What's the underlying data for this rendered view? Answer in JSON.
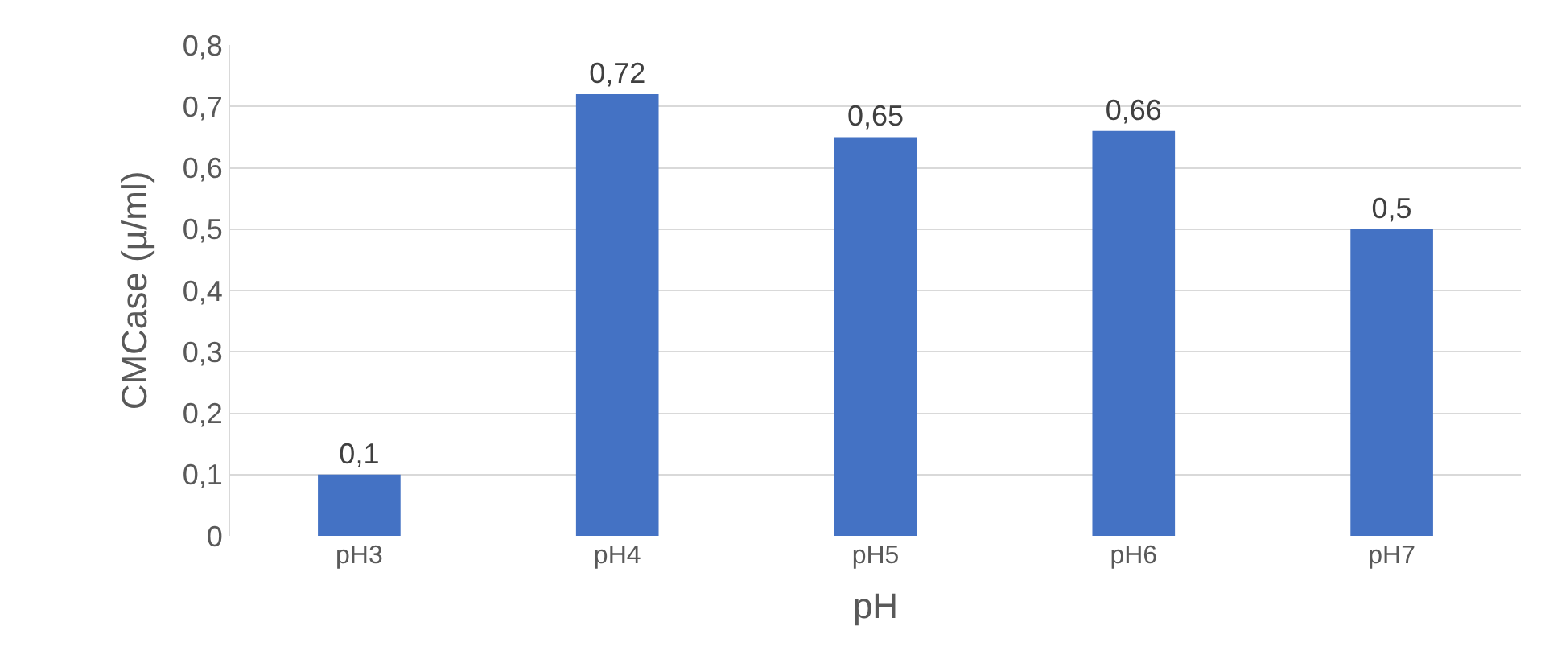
{
  "chart_data": {
    "type": "bar",
    "xlabel": "pH",
    "ylabel": "CMCase (µ/ml)",
    "categories": [
      "pH3",
      "pH4",
      "pH5",
      "pH6",
      "pH7"
    ],
    "values": [
      0.1,
      0.72,
      0.65,
      0.66,
      0.5
    ],
    "value_labels": [
      "0,1",
      "0,72",
      "0,65",
      "0,66",
      "0,5"
    ],
    "color": "#4472c4",
    "ylim": [
      0,
      0.8
    ],
    "yticks": [
      0,
      {
        "value": 0.1,
        "label": "0,1"
      },
      {
        "value": 0.2,
        "label": "0,2"
      },
      {
        "value": 0.3,
        "label": "0,3"
      },
      {
        "value": 0.4,
        "label": "0,4"
      },
      {
        "value": 0.5,
        "label": "0,5"
      },
      {
        "value": 0.6,
        "label": "0,6"
      },
      {
        "value": 0.7,
        "label": "0,7"
      },
      {
        "value": 0.8,
        "label": "0,8"
      }
    ],
    "grid": "y",
    "legend": false
  }
}
